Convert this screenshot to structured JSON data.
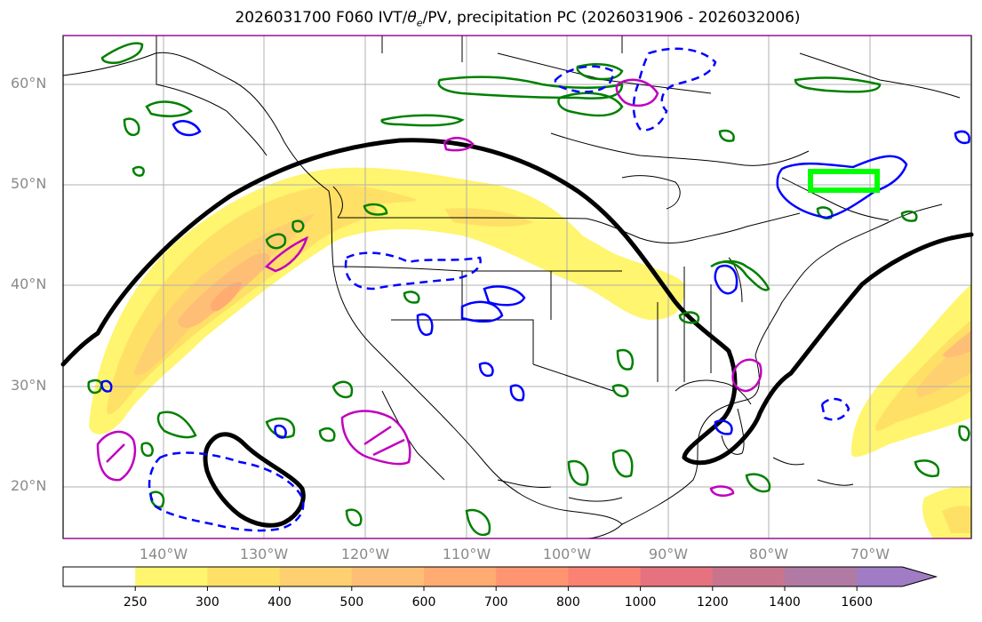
{
  "title_main": "2026031700 F060 IVT/",
  "title_theta": "θ",
  "title_sub": "e",
  "title_rest": "/PV, precipitation PC (2026031906 - 2026032006)",
  "lat_labels": [
    "60°N",
    "50°N",
    "40°N",
    "30°N",
    "20°N"
  ],
  "lon_labels": [
    "140°W",
    "130°W",
    "120°W",
    "110°W",
    "100°W",
    "90°W",
    "80°W",
    "70°W"
  ],
  "colorbar": {
    "levels": [
      "250",
      "300",
      "400",
      "500",
      "600",
      "700",
      "800",
      "1000",
      "1200",
      "1400",
      "1600"
    ],
    "colors": [
      "#ffffff",
      "#fff56e",
      "#ffe066",
      "#ffd070",
      "#ffbe76",
      "#ffab72",
      "#ff9470",
      "#fa8272",
      "#e5727e",
      "#c9748e",
      "#b07aa4",
      "#9f7cc4"
    ]
  },
  "contour_colors": {
    "theta_e": "#000000",
    "pv": "#008000",
    "precip": "#0000ff",
    "ivt_special": "#c000c0",
    "box": "#00ff00"
  }
}
